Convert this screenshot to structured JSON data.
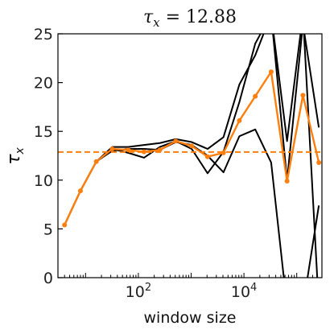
{
  "chart_data": {
    "type": "line",
    "title": "τ_x = 12.88",
    "title_main": "τ",
    "title_sub": "x",
    "title_rest": " = 12.88",
    "xlabel": "window size",
    "ylabel_main": "τ",
    "ylabel_sub": "x",
    "x_scale": "log",
    "xlim": [
      3,
      300000
    ],
    "ylim": [
      0,
      25
    ],
    "yticks": [
      0,
      5,
      10,
      15,
      20,
      25
    ],
    "xticks": [
      {
        "value": 100,
        "base": "10",
        "exp": "2"
      },
      {
        "value": 10000,
        "base": "10",
        "exp": "4"
      }
    ],
    "reference_line": {
      "y": 12.88,
      "color": "#ff7f0e",
      "style": "dashed"
    },
    "grid": false,
    "colors": {
      "estimate": "#ff7f0e",
      "chains": "#000000"
    },
    "series": [
      {
        "x": [
          4,
          8,
          16,
          32,
          64,
          128,
          256,
          512,
          1024,
          2048,
          4096,
          8192,
          16384,
          32768,
          65536,
          131072,
          262144
        ],
        "values": [
          5.4,
          8.9,
          11.9,
          13.2,
          12.8,
          12.3,
          13.4,
          14.0,
          13.2,
          10.7,
          12.9,
          18.0,
          24.0,
          27.0,
          10.0,
          26.0,
          15.4
        ]
      },
      {
        "x": [
          4,
          8,
          16,
          32,
          64,
          128,
          256,
          512,
          1024,
          2048,
          4096,
          8192,
          16384,
          32768,
          65536,
          131072,
          262144
        ],
        "values": [
          5.4,
          8.9,
          11.9,
          13.0,
          13.2,
          13.2,
          13.1,
          13.9,
          13.6,
          12.5,
          10.8,
          14.5,
          15.2,
          11.8,
          -3.0,
          -3.0,
          7.4
        ]
      },
      {
        "x": [
          4,
          8,
          16,
          32,
          64,
          128,
          256,
          512,
          1024,
          2048,
          4096,
          8192,
          16384,
          32768,
          65536,
          131072,
          262144
        ],
        "values": [
          5.4,
          8.9,
          11.9,
          13.4,
          13.4,
          13.6,
          13.8,
          14.2,
          13.9,
          13.2,
          14.4,
          19.8,
          22.8,
          27.0,
          14.0,
          27.0,
          -3.0
        ]
      },
      {
        "x": [
          4,
          8,
          16,
          32,
          64,
          128,
          256,
          512,
          1024,
          2048,
          4096,
          8192,
          16384,
          32768,
          65536,
          131072,
          262144
        ],
        "values": [
          5.4,
          8.9,
          11.9,
          13.2,
          13.1,
          12.9,
          13.1,
          14.0,
          13.5,
          12.4,
          12.8,
          16.1,
          18.6,
          21.1,
          9.9,
          18.7,
          11.8
        ]
      }
    ]
  }
}
